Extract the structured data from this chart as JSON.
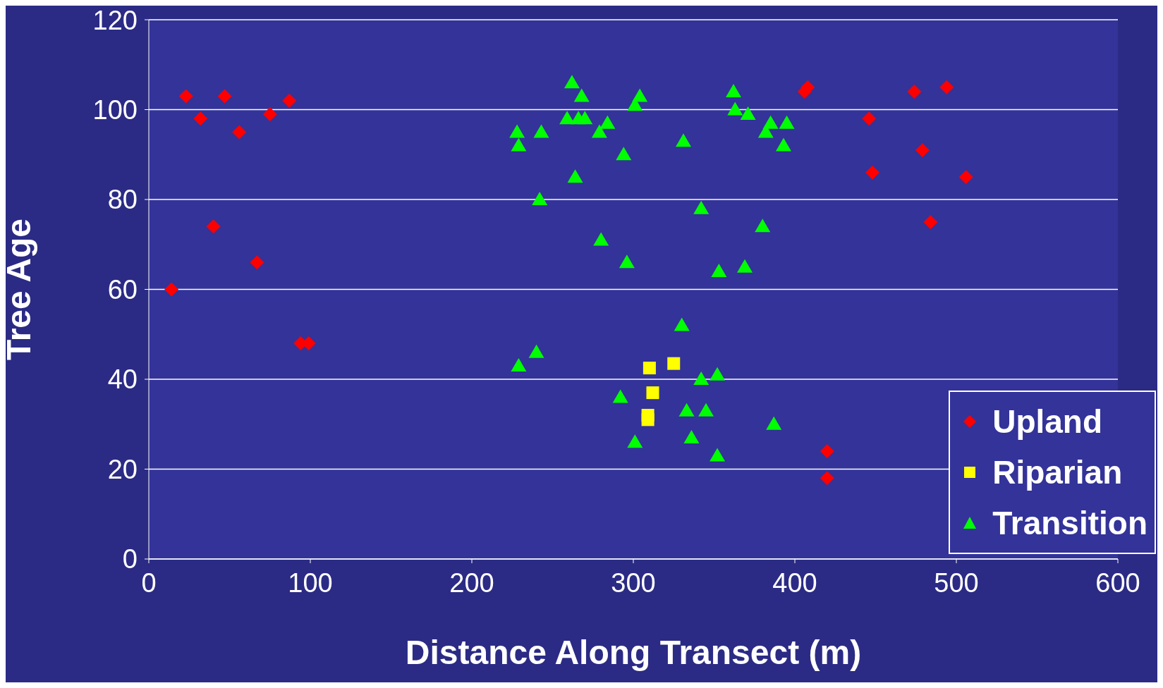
{
  "chart_data": {
    "type": "scatter",
    "xlabel": "Distance Along Transect (m)",
    "ylabel": "Tree Age",
    "xlim": [
      0,
      600
    ],
    "xticks": [
      0,
      100,
      200,
      300,
      400,
      500,
      600
    ],
    "ylim": [
      0,
      120
    ],
    "yticks": [
      0,
      20,
      40,
      60,
      80,
      100,
      120
    ],
    "grid": "y",
    "legend": "bottom right",
    "series": [
      {
        "name": "Upland",
        "color": "#ff0000",
        "marker": "diamond",
        "x": [
          14,
          23,
          32,
          47,
          40,
          56,
          67,
          75,
          87,
          94,
          99,
          406,
          408,
          446,
          448,
          474,
          479,
          484,
          494,
          506,
          420,
          420
        ],
        "values": [
          60,
          103,
          98,
          103,
          74,
          95,
          66,
          99,
          102,
          48,
          48,
          104,
          105,
          98,
          86,
          104,
          91,
          75,
          105,
          85,
          24,
          18
        ]
      },
      {
        "name": "Riparian",
        "color": "#ffff00",
        "marker": "square",
        "x": [
          310,
          325,
          312,
          309,
          309
        ],
        "values": [
          42.5,
          43.5,
          37,
          32,
          31
        ]
      },
      {
        "name": "Transition",
        "color": "#00ff00",
        "marker": "triangle",
        "x": [
          228,
          229,
          243,
          242,
          262,
          268,
          259,
          266,
          270,
          264,
          279,
          284,
          280,
          294,
          296,
          301,
          304,
          331,
          342,
          353,
          362,
          363,
          371,
          369,
          380,
          382,
          385,
          393,
          395,
          330,
          229,
          240,
          292,
          301,
          342,
          352,
          333,
          345,
          336,
          352,
          387
        ],
        "values": [
          95,
          92,
          95,
          80,
          106,
          103,
          98,
          98,
          98,
          85,
          95,
          97,
          71,
          90,
          66,
          101,
          103,
          93,
          78,
          64,
          104,
          100,
          99,
          65,
          74,
          95,
          97,
          92,
          97,
          52,
          43,
          46,
          36,
          26,
          40,
          41,
          33,
          33,
          27,
          23,
          30
        ]
      }
    ]
  }
}
